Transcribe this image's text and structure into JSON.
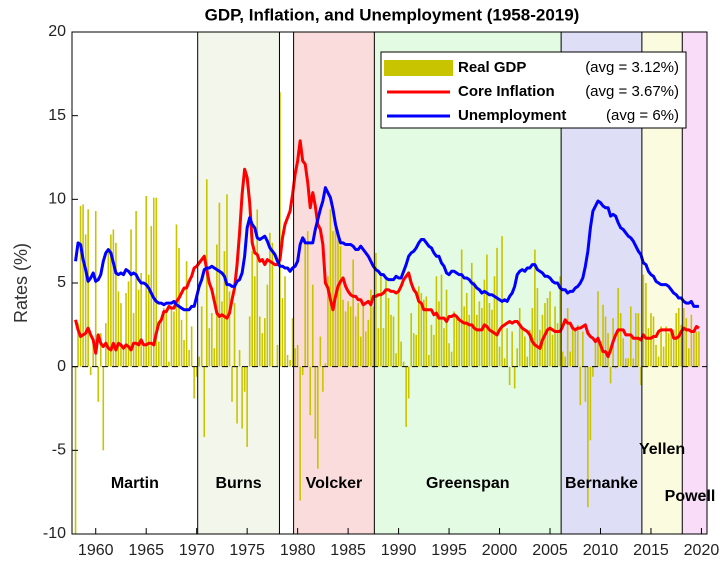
{
  "chart_data": {
    "type": "bar_line",
    "title": "GDP, Inflation, and Unemployment (1958-2019)",
    "y_label": "Rates (%)",
    "xlim": [
      1957.65,
      2020.55
    ],
    "ylim": [
      -10,
      20
    ],
    "xticks": [
      1960,
      1965,
      1970,
      1975,
      1980,
      1985,
      1990,
      1995,
      2000,
      2005,
      2010,
      2015,
      2020
    ],
    "yticks": [
      -10,
      -5,
      0,
      5,
      10,
      15,
      20
    ],
    "legend": "upper right",
    "x": [
      1958,
      1958.25,
      1958.5,
      1958.75,
      1959,
      1959.25,
      1959.5,
      1959.75,
      1960,
      1960.25,
      1960.5,
      1960.75,
      1961,
      1961.25,
      1961.5,
      1961.75,
      1962,
      1962.25,
      1962.5,
      1962.75,
      1963,
      1963.25,
      1963.5,
      1963.75,
      1964,
      1964.25,
      1964.5,
      1964.75,
      1965,
      1965.25,
      1965.5,
      1965.75,
      1966,
      1966.25,
      1966.5,
      1966.75,
      1967,
      1967.25,
      1967.5,
      1967.75,
      1968,
      1968.25,
      1968.5,
      1968.75,
      1969,
      1969.25,
      1969.5,
      1969.75,
      1970,
      1970.25,
      1970.5,
      1970.75,
      1971,
      1971.25,
      1971.5,
      1971.75,
      1972,
      1972.25,
      1972.5,
      1972.75,
      1973,
      1973.25,
      1973.5,
      1973.75,
      1974,
      1974.25,
      1974.5,
      1974.75,
      1975,
      1975.25,
      1975.5,
      1975.75,
      1976,
      1976.25,
      1976.5,
      1976.75,
      1977,
      1977.25,
      1977.5,
      1977.75,
      1978,
      1978.25,
      1978.5,
      1978.75,
      1979,
      1979.25,
      1979.5,
      1979.75,
      1980,
      1980.25,
      1980.5,
      1980.75,
      1981,
      1981.25,
      1981.5,
      1981.75,
      1982,
      1982.25,
      1982.5,
      1982.75,
      1983,
      1983.25,
      1983.5,
      1983.75,
      1984,
      1984.25,
      1984.5,
      1984.75,
      1985,
      1985.25,
      1985.5,
      1985.75,
      1986,
      1986.25,
      1986.5,
      1986.75,
      1987,
      1987.25,
      1987.5,
      1987.75,
      1988,
      1988.25,
      1988.5,
      1988.75,
      1989,
      1989.25,
      1989.5,
      1989.75,
      1990,
      1990.25,
      1990.5,
      1990.75,
      1991,
      1991.25,
      1991.5,
      1991.75,
      1992,
      1992.25,
      1992.5,
      1992.75,
      1993,
      1993.25,
      1993.5,
      1993.75,
      1994,
      1994.25,
      1994.5,
      1994.75,
      1995,
      1995.25,
      1995.5,
      1995.75,
      1996,
      1996.25,
      1996.5,
      1996.75,
      1997,
      1997.25,
      1997.5,
      1997.75,
      1998,
      1998.25,
      1998.5,
      1998.75,
      1999,
      1999.25,
      1999.5,
      1999.75,
      2000,
      2000.25,
      2000.5,
      2000.75,
      2001,
      2001.25,
      2001.5,
      2001.75,
      2002,
      2002.25,
      2002.5,
      2002.75,
      2003,
      2003.25,
      2003.5,
      2003.75,
      2004,
      2004.25,
      2004.5,
      2004.75,
      2005,
      2005.25,
      2005.5,
      2005.75,
      2006,
      2006.25,
      2006.5,
      2006.75,
      2007,
      2007.25,
      2007.5,
      2007.75,
      2008,
      2008.25,
      2008.5,
      2008.75,
      2009,
      2009.25,
      2009.5,
      2009.75,
      2010,
      2010.25,
      2010.5,
      2010.75,
      2011,
      2011.25,
      2011.5,
      2011.75,
      2012,
      2012.25,
      2012.5,
      2012.75,
      2013,
      2013.25,
      2013.5,
      2013.75,
      2014,
      2014.25,
      2014.5,
      2014.75,
      2015,
      2015.25,
      2015.5,
      2015.75,
      2016,
      2016.25,
      2016.5,
      2016.75,
      2017,
      2017.25,
      2017.5,
      2017.75,
      2018,
      2018.25,
      2018.5,
      2018.75,
      2019,
      2019.25,
      2019.5,
      2019.75
    ],
    "series": [
      {
        "name": "Real GDP",
        "avg_label": "(avg = 3.12%)",
        "kind": "bar",
        "color": "#c8c400",
        "values": [
          -10,
          2.6,
          9.6,
          9.7,
          7.9,
          9.4,
          -0.5,
          1.5,
          9.3,
          -2.1,
          2.0,
          -5.0,
          2.6,
          7.0,
          7.9,
          8.2,
          7.4,
          4.5,
          3.8,
          1.2,
          4.4,
          5.1,
          8.2,
          3.2,
          9.3,
          4.6,
          5.6,
          1.2,
          10.2,
          5.5,
          8.4,
          10.1,
          10.1,
          1.5,
          3.0,
          3.5,
          3.4,
          0.3,
          3.5,
          3.3,
          8.5,
          7.1,
          2.8,
          1.6,
          6.3,
          1.0,
          2.4,
          -1.9,
          -0.6,
          0.6,
          3.6,
          -4.2,
          11.2,
          2.3,
          3.2,
          1.1,
          7.3,
          9.8,
          3.9,
          6.9,
          10.3,
          4.5,
          -2.1,
          3.8,
          -3.4,
          1.0,
          -3.7,
          -1.5,
          -4.8,
          3.0,
          6.9,
          5.4,
          9.4,
          3.0,
          2.0,
          2.9,
          4.9,
          8.0,
          7.4,
          0.0,
          1.3,
          16.4,
          4.1,
          5.4,
          0.7,
          0.4,
          2.9,
          1.1,
          1.3,
          -8.0,
          -0.5,
          7.7,
          8.1,
          -2.9,
          4.9,
          -4.3,
          -6.1,
          1.8,
          -1.5,
          0.2,
          5.4,
          9.4,
          8.1,
          8.5,
          8.2,
          7.2,
          4.0,
          3.3,
          3.9,
          3.6,
          6.4,
          3.0,
          3.8,
          1.8,
          3.9,
          2.1,
          2.8,
          4.6,
          3.6,
          6.8,
          2.3,
          5.4,
          2.3,
          5.4,
          4.1,
          3.1,
          3.0,
          0.8,
          4.4,
          1.5,
          0.3,
          -3.6,
          -1.9,
          3.2,
          2.0,
          1.9,
          4.8,
          4.4,
          4.0,
          4.2,
          0.7,
          2.5,
          1.9,
          5.4,
          3.9,
          5.5,
          2.3,
          4.6,
          1.4,
          0.9,
          3.3,
          3.0,
          2.7,
          7.0,
          3.6,
          4.4,
          3.1,
          6.2,
          5.1,
          3.1,
          3.9,
          3.5,
          5.2,
          6.7,
          3.8,
          3.4,
          5.4,
          7.1,
          1.2,
          7.8,
          0.5,
          2.3,
          -1.1,
          2.1,
          -1.3,
          1.1,
          3.5,
          2.4,
          1.8,
          0.6,
          2.2,
          3.5,
          7.0,
          4.7,
          2.2,
          3.1,
          3.8,
          4.1,
          4.5,
          1.9,
          3.6,
          2.6,
          5.4,
          0.9,
          0.6,
          3.5,
          0.9,
          2.3,
          2.2,
          2.5,
          -2.3,
          2.1,
          -2.1,
          -8.4,
          -4.4,
          -0.6,
          1.5,
          4.5,
          1.5,
          3.7,
          3.0,
          2.0,
          -1.0,
          2.9,
          -0.1,
          4.7,
          3.2,
          1.7,
          0.5,
          0.5,
          3.6,
          0.5,
          3.2,
          3.2,
          -1.1,
          5.5,
          5.0,
          2.3,
          3.2,
          3.0,
          1.3,
          0.6,
          2.4,
          1.2,
          2.4,
          2.0,
          2.3,
          2.2,
          3.2,
          3.5,
          2.5,
          3.5,
          2.9,
          1.1,
          3.1,
          2.0,
          2.1,
          2.1
        ]
      },
      {
        "name": "Core Inflation",
        "avg_label": "(avg = 3.67%)",
        "kind": "line",
        "color": "#ff0000",
        "values": [
          2.8,
          2.2,
          1.8,
          1.9,
          2.0,
          2.3,
          1.9,
          1.6,
          0.8,
          1.9,
          1.4,
          1.2,
          1.4,
          1.1,
          1.0,
          1.4,
          1.0,
          1.4,
          1.3,
          1.1,
          1.3,
          1.2,
          1.0,
          1.4,
          1.4,
          1.3,
          1.6,
          1.3,
          1.3,
          1.4,
          1.4,
          1.3,
          2.0,
          2.6,
          2.8,
          3.3,
          3.3,
          3.6,
          3.5,
          3.5,
          3.9,
          4.1,
          4.4,
          4.7,
          4.7,
          5.1,
          5.4,
          5.9,
          6.0,
          6.2,
          6.4,
          6.6,
          5.8,
          5.0,
          4.6,
          3.9,
          3.2,
          3.0,
          3.1,
          3.0,
          2.9,
          3.2,
          4.0,
          4.7,
          6.1,
          8.0,
          10.3,
          11.8,
          11.3,
          9.8,
          7.4,
          6.8,
          6.7,
          6.3,
          6.4,
          6.1,
          6.4,
          6.3,
          6.2,
          6.1,
          6.1,
          6.4,
          7.7,
          8.5,
          8.9,
          9.3,
          10.3,
          11.5,
          12.3,
          13.5,
          12.3,
          12.1,
          11.0,
          9.5,
          10.4,
          9.6,
          8.5,
          8.2,
          7.3,
          5.0,
          4.7,
          4.0,
          3.4,
          4.2,
          4.8,
          5.1,
          5.3,
          4.8,
          4.5,
          4.3,
          4.2,
          4.2,
          4.0,
          4.0,
          3.7,
          3.8,
          3.9,
          3.7,
          4.2,
          4.2,
          4.3,
          4.3,
          4.4,
          4.6,
          4.6,
          4.5,
          4.5,
          4.4,
          4.5,
          4.8,
          5.2,
          5.4,
          5.6,
          5.0,
          4.6,
          4.4,
          3.9,
          3.8,
          3.4,
          3.4,
          3.4,
          3.4,
          3.1,
          3.2,
          2.9,
          2.9,
          2.9,
          2.7,
          3.0,
          3.0,
          3.1,
          3.0,
          2.8,
          2.7,
          2.6,
          2.6,
          2.5,
          2.5,
          2.3,
          2.2,
          2.2,
          2.2,
          2.5,
          2.4,
          2.2,
          2.1,
          2.0,
          1.9,
          2.2,
          2.4,
          2.5,
          2.6,
          2.7,
          2.6,
          2.7,
          2.7,
          2.5,
          2.3,
          2.2,
          2.1,
          1.9,
          1.5,
          1.3,
          1.2,
          1.1,
          1.6,
          1.9,
          2.2,
          2.3,
          2.2,
          2.1,
          2.1,
          2.1,
          2.4,
          2.8,
          2.6,
          2.6,
          2.3,
          2.2,
          2.3,
          2.3,
          2.4,
          2.5,
          2.0,
          1.8,
          1.7,
          1.5,
          1.7,
          1.3,
          0.9,
          0.9,
          0.6,
          1.0,
          1.5,
          1.9,
          2.2,
          2.2,
          2.2,
          1.9,
          1.9,
          1.9,
          1.7,
          1.7,
          1.7,
          1.6,
          1.9,
          1.7,
          1.7,
          1.7,
          1.8,
          1.8,
          2.1,
          2.2,
          2.2,
          2.2,
          2.2,
          2.2,
          1.7,
          1.7,
          1.8,
          2.1,
          2.3,
          2.2,
          2.2,
          2.1,
          2.1,
          2.4,
          2.3
        ]
      },
      {
        "name": "Unemployment",
        "avg_label": "(avg = 6%)",
        "kind": "line",
        "color": "#0000ff",
        "values": [
          6.3,
          7.4,
          7.3,
          6.4,
          5.8,
          5.1,
          5.3,
          5.6,
          5.1,
          5.2,
          5.5,
          6.3,
          6.8,
          7.0,
          6.8,
          6.2,
          5.6,
          5.5,
          5.6,
          5.5,
          5.8,
          5.7,
          5.5,
          5.6,
          5.5,
          5.2,
          5.0,
          5.0,
          4.9,
          4.7,
          4.4,
          4.1,
          3.9,
          3.8,
          3.8,
          3.7,
          3.8,
          3.8,
          3.8,
          3.9,
          3.7,
          3.6,
          3.5,
          3.4,
          3.4,
          3.4,
          3.6,
          3.6,
          4.2,
          4.8,
          5.2,
          5.8,
          5.9,
          5.9,
          6.0,
          5.9,
          5.8,
          5.7,
          5.6,
          5.4,
          4.9,
          4.9,
          4.8,
          4.8,
          5.1,
          5.2,
          5.6,
          6.6,
          8.3,
          8.9,
          8.5,
          8.3,
          7.7,
          7.6,
          7.7,
          7.8,
          7.5,
          7.1,
          6.9,
          6.7,
          6.3,
          6.0,
          6.0,
          5.9,
          5.9,
          5.7,
          5.9,
          6.0,
          6.3,
          7.3,
          7.7,
          7.4,
          7.4,
          7.4,
          7.4,
          8.2,
          8.8,
          9.4,
          9.9,
          10.7,
          10.4,
          10.1,
          9.4,
          8.5,
          7.9,
          7.4,
          7.4,
          7.3,
          7.3,
          7.3,
          7.2,
          7.0,
          7.0,
          7.2,
          7.0,
          6.8,
          6.6,
          6.3,
          6.0,
          5.8,
          5.7,
          5.5,
          5.5,
          5.3,
          5.2,
          5.2,
          5.2,
          5.4,
          5.3,
          5.3,
          5.7,
          6.1,
          6.6,
          6.8,
          6.9,
          7.1,
          7.4,
          7.6,
          7.6,
          7.4,
          7.2,
          7.1,
          6.8,
          6.6,
          6.6,
          6.2,
          6.0,
          5.6,
          5.5,
          5.7,
          5.7,
          5.6,
          5.5,
          5.5,
          5.3,
          5.3,
          5.2,
          5.0,
          4.9,
          4.7,
          4.6,
          4.4,
          4.5,
          4.4,
          4.3,
          4.3,
          4.2,
          4.1,
          4.0,
          3.9,
          4.0,
          3.9,
          4.2,
          4.4,
          4.8,
          5.5,
          5.7,
          5.8,
          5.7,
          5.9,
          5.9,
          6.1,
          6.1,
          5.8,
          5.7,
          5.6,
          5.4,
          5.4,
          5.3,
          5.1,
          5.0,
          5.0,
          4.7,
          4.6,
          4.6,
          4.4,
          4.5,
          4.5,
          4.7,
          4.8,
          5.0,
          5.3,
          6.0,
          6.9,
          8.3,
          9.3,
          9.6,
          9.9,
          9.8,
          9.6,
          9.5,
          9.5,
          9.0,
          9.1,
          9.0,
          8.6,
          8.3,
          8.2,
          8.0,
          7.8,
          7.7,
          7.5,
          7.2,
          6.9,
          6.7,
          6.2,
          6.1,
          5.7,
          5.5,
          5.4,
          5.1,
          5.0,
          4.9,
          4.9,
          4.9,
          4.8,
          4.6,
          4.4,
          4.3,
          4.1,
          4.1,
          3.9,
          3.8,
          3.8,
          3.9,
          3.6,
          3.6,
          3.6
        ]
      }
    ],
    "eras": [
      {
        "name": "Martin",
        "start": 1957.65,
        "end": 1970.1,
        "color": "#ffffff"
      },
      {
        "name": "Burns",
        "start": 1970.1,
        "end": 1978.2,
        "color": "#f3f6ea"
      },
      {
        "name": null,
        "start": 1978.2,
        "end": 1979.6,
        "color": "#ffffff"
      },
      {
        "name": "Volcker",
        "start": 1979.6,
        "end": 1987.6,
        "color": "#fadcdc"
      },
      {
        "name": "Greenspan",
        "start": 1987.6,
        "end": 2006.1,
        "color": "#e2fbe2"
      },
      {
        "name": "Bernanke",
        "start": 2006.1,
        "end": 2014.1,
        "color": "#dedef6"
      },
      {
        "name": "Yellen",
        "start": 2014.1,
        "end": 2018.1,
        "color": "#fbfbdf"
      },
      {
        "name": "Powell",
        "start": 2018.1,
        "end": 2020.55,
        "color": "#f8dcf8"
      }
    ]
  }
}
